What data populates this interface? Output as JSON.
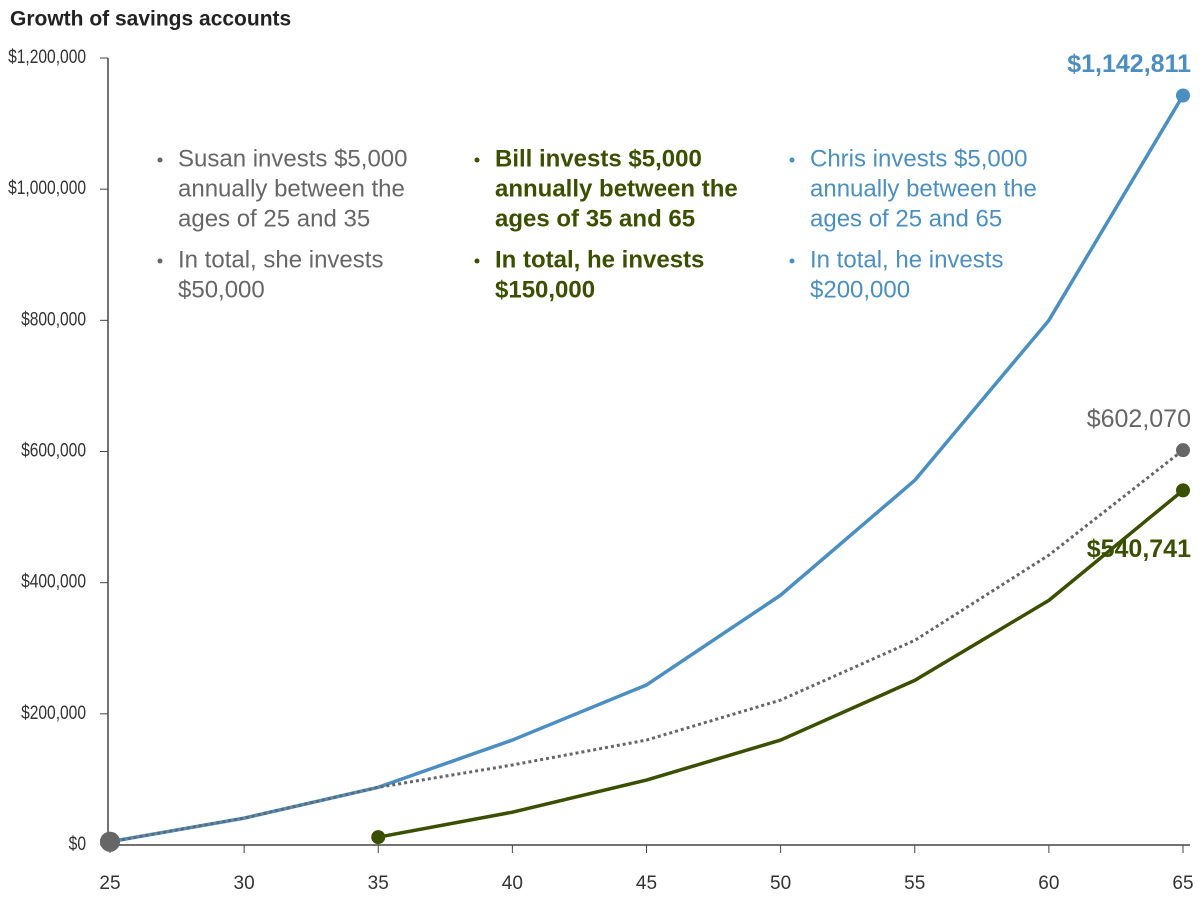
{
  "chart_data": {
    "type": "line",
    "title": "Growth of savings accounts",
    "x": [
      25,
      30,
      35,
      40,
      45,
      50,
      55,
      60,
      65
    ],
    "xlim": [
      25,
      65
    ],
    "xticks": [
      25,
      30,
      35,
      40,
      45,
      50,
      55,
      60,
      65
    ],
    "ylim": [
      0,
      1200000
    ],
    "yticks": [
      {
        "value": 0,
        "label": "$0"
      },
      {
        "value": 200000,
        "label": "$200,000"
      },
      {
        "value": 400000,
        "label": "$400,000"
      },
      {
        "value": 600000,
        "label": "$600,000"
      },
      {
        "value": 800000,
        "label": "$800,000"
      },
      {
        "value": 1000000,
        "label": "$1,000,000"
      },
      {
        "value": 1200000,
        "label": "$1,200,000"
      }
    ],
    "grid": false,
    "series": [
      {
        "name": "Chris",
        "color": "#4a8fc0",
        "dashed": false,
        "values": [
          5000,
          41000,
          88000,
          160000,
          244000,
          381000,
          556000,
          800000,
          1142811
        ],
        "value_labels": [
          null,
          null,
          null,
          null,
          null,
          null,
          null,
          null,
          "$1,142,811"
        ]
      },
      {
        "name": "Susan",
        "color": "#666666",
        "dashed": true,
        "values": [
          5000,
          41000,
          88000,
          122000,
          160000,
          221000,
          312000,
          442000,
          602070
        ],
        "value_labels": [
          null,
          null,
          null,
          null,
          null,
          null,
          null,
          null,
          "$602,070"
        ]
      },
      {
        "name": "Bill",
        "color": "#3a5000",
        "dashed": false,
        "values": [
          null,
          null,
          12000,
          50000,
          99000,
          160000,
          251000,
          373000,
          540741
        ],
        "value_labels": [
          null,
          null,
          null,
          null,
          null,
          null,
          null,
          null,
          "$540,741"
        ]
      }
    ],
    "annotations": [
      {
        "color": "#666666",
        "bullets": [
          [
            "Susan invests $5,000",
            "annually between the",
            "ages of 25 and 35"
          ],
          [
            "In total, she invests",
            "$50,000"
          ]
        ]
      },
      {
        "color": "#3a5000",
        "bullets": [
          [
            "Bill invests $5,000",
            "annually between the",
            "ages of 35 and 65"
          ],
          [
            "In total, he invests",
            "$150,000"
          ]
        ]
      },
      {
        "color": "#4a8fc0",
        "bullets": [
          [
            "Chris invests $5,000",
            "annually between the",
            "ages of 25 and 65"
          ],
          [
            "In total, he invests",
            "$200,000"
          ]
        ]
      }
    ]
  }
}
